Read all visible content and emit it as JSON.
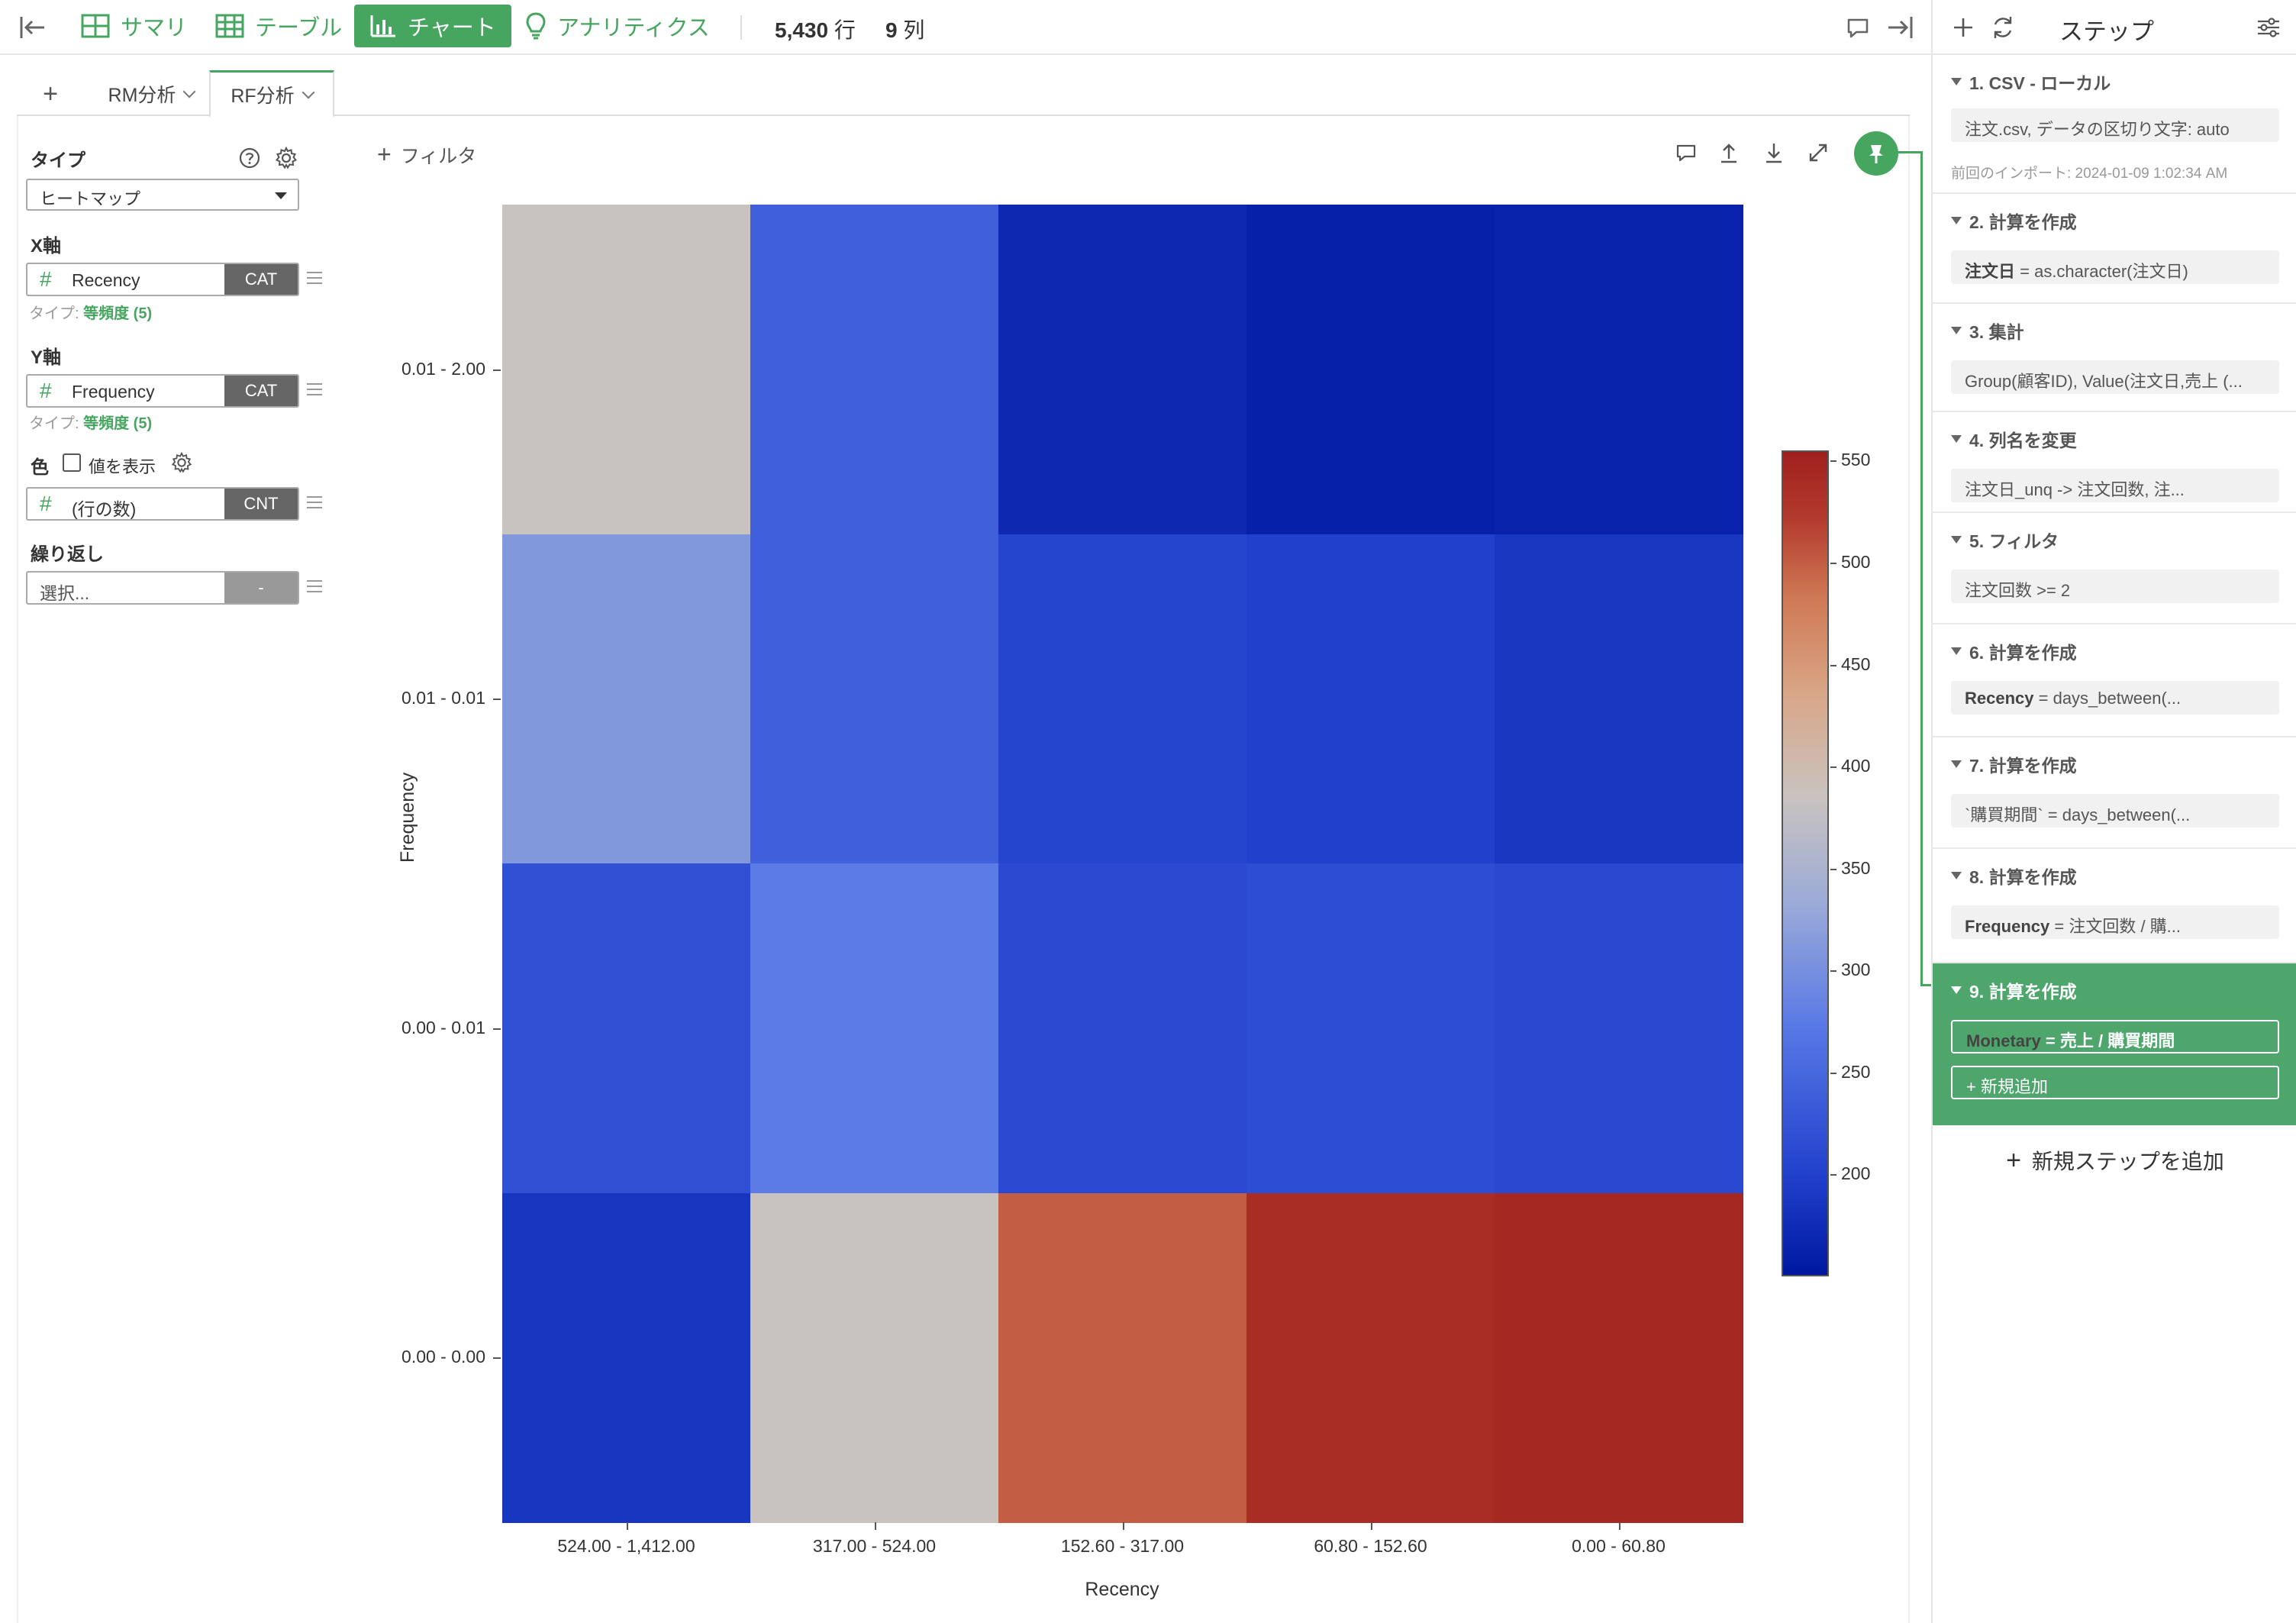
{
  "topbar": {
    "tabs": [
      {
        "label": "サマリ",
        "icon": "summary-grid-icon"
      },
      {
        "label": "テーブル",
        "icon": "table-icon"
      },
      {
        "label": "チャート",
        "icon": "bar-chart-icon",
        "active": true
      },
      {
        "label": "アナリティクス",
        "icon": "lightbulb-icon"
      }
    ],
    "rows_value": "5,430",
    "rows_unit": "行",
    "cols_value": "9",
    "cols_unit": "列"
  },
  "chart_tabs": {
    "add": "+",
    "tabs": [
      {
        "label": "RM分析"
      },
      {
        "label": "RF分析",
        "active": true
      }
    ]
  },
  "config": {
    "type_label": "タイプ",
    "type_value": "ヒートマップ",
    "x_label": "X軸",
    "x_field": "Recency",
    "x_tag": "CAT",
    "x_subtype_prefix": "タイプ: ",
    "x_subtype": "等頻度 (5)",
    "y_label": "Y軸",
    "y_field": "Frequency",
    "y_tag": "CAT",
    "y_subtype_prefix": "タイプ: ",
    "y_subtype": "等頻度 (5)",
    "color_label": "色",
    "show_values_label": "値を表示",
    "color_field": "(行の数)",
    "color_tag": "CNT",
    "repeat_label": "繰り返し",
    "repeat_placeholder": "選択...",
    "repeat_tag": "-"
  },
  "chart_header": {
    "filter_label": "フィルタ"
  },
  "chart_data": {
    "type": "heatmap",
    "xlabel": "Recency",
    "ylabel": "Frequency",
    "x_categories": [
      "524.00 - 1,412.00",
      "317.00 - 524.00",
      "152.60 - 317.00",
      "60.80 - 152.60",
      "0.00 - 60.80"
    ],
    "y_categories": [
      "0.01 - 2.00",
      "0.01 - 0.01",
      "0.00 - 0.01",
      "0.00 - 0.00"
    ],
    "values": [
      [
        385,
        240,
        170,
        160,
        162
      ],
      [
        310,
        240,
        205,
        198,
        188
      ],
      [
        220,
        275,
        212,
        215,
        210
      ],
      [
        185,
        385,
        500,
        540,
        545
      ]
    ],
    "colorbar_ticks": [
      550,
      500,
      450,
      400,
      350,
      300,
      250,
      200
    ],
    "colorbar_range": [
      150,
      555
    ],
    "colors": {
      "low": "#0018a0",
      "mid": "#c9c3bf",
      "high": "#a0201e"
    }
  },
  "steps_panel": {
    "title": "ステップ",
    "steps": [
      {
        "title": "1. CSV - ローカル",
        "bold": "",
        "text": "注文.csv, データの区切り文字: auto",
        "note": "前回のインポート: 2024-01-09 1:02:34 AM"
      },
      {
        "title": "2. 計算を作成",
        "bold": "注文日",
        "text": " = as.character(注文日)"
      },
      {
        "title": "3. 集計",
        "bold": "",
        "text": "Group(顧客ID), Value(注文日,売上 (..."
      },
      {
        "title": "4. 列名を変更",
        "bold": "",
        "text": "注文日_unq -> 注文回数, 注..."
      },
      {
        "title": "5. フィルタ",
        "bold": "",
        "text": "注文回数 >= 2"
      },
      {
        "title": "6. 計算を作成",
        "bold": "Recency",
        "text": " = days_between(..."
      },
      {
        "title": "7. 計算を作成",
        "bold": "",
        "text": "`購買期間` = days_between(..."
      },
      {
        "title": "8. 計算を作成",
        "bold": "Frequency",
        "text": " = 注文回数 / 購..."
      },
      {
        "title": "9. 計算を作成",
        "bold": "Monetary",
        "text": " = 売上 / 購買期間",
        "active": true,
        "add_new": "+ 新規追加"
      }
    ],
    "add_step": "新規ステップを追加"
  }
}
